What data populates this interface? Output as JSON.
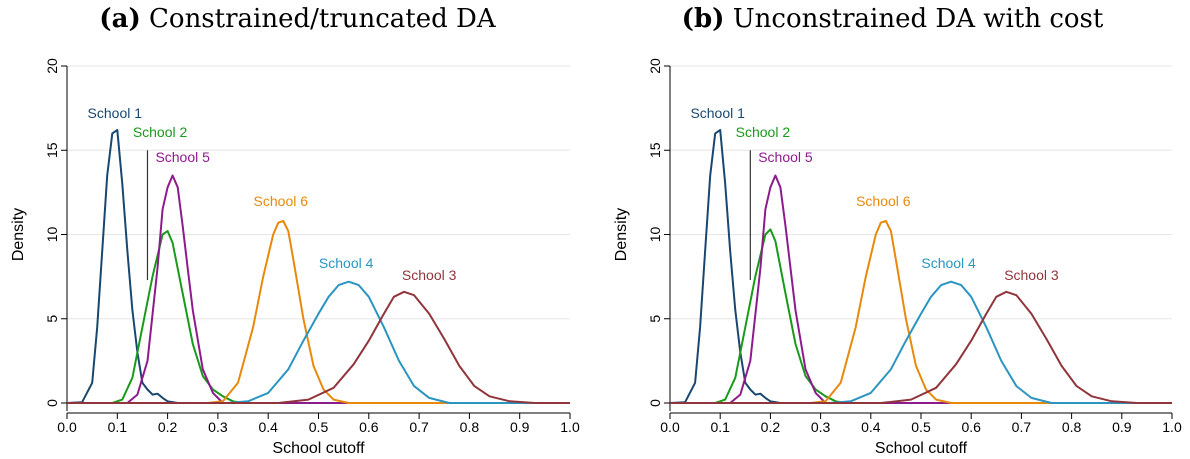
{
  "colors": {
    "school1": "#1a476f",
    "school2": "#1a9a1a",
    "school3": "#90353b",
    "school4": "#2a95c0",
    "school5": "#8c1b8c",
    "school6": "#e8890c",
    "grid": "#e6e6e6",
    "axis": "#000000"
  },
  "chart_data": [
    {
      "type": "line",
      "panel_letter": "(a)",
      "title": "Constrained/truncated DA",
      "xlabel": "School cutoff",
      "ylabel": "Density",
      "xlim": [
        0,
        1
      ],
      "ylim": [
        0,
        20
      ],
      "xticks": [
        "0.0",
        "0.1",
        "0.2",
        "0.3",
        "0.4",
        "0.5",
        "0.6",
        "0.7",
        "0.8",
        "0.9",
        "1.0"
      ],
      "yticks": [
        "0",
        "5",
        "10",
        "15",
        "20"
      ],
      "grid": true,
      "vertical_marker": {
        "x": 0.16,
        "y_from": 7.3,
        "y_to": 15.0
      },
      "series": [
        {
          "name": "School 1",
          "color_key": "school1",
          "label_at": [
            0.095,
            16.9
          ],
          "x": [
            0,
            0.03,
            0.05,
            0.06,
            0.07,
            0.08,
            0.09,
            0.1,
            0.11,
            0.12,
            0.13,
            0.14,
            0.15,
            0.16,
            0.17,
            0.18,
            0.19,
            0.2,
            0.22,
            1.0
          ],
          "y": [
            0,
            0.05,
            1.2,
            4.5,
            9.0,
            13.5,
            16.0,
            16.2,
            13.0,
            9.0,
            5.5,
            3.0,
            1.2,
            0.8,
            0.5,
            0.55,
            0.3,
            0.1,
            0,
            0
          ]
        },
        {
          "name": "School 2",
          "color_key": "school2",
          "label_at": [
            0.185,
            15.8
          ],
          "x": [
            0,
            0.09,
            0.11,
            0.13,
            0.15,
            0.17,
            0.19,
            0.2,
            0.21,
            0.23,
            0.25,
            0.27,
            0.29,
            0.31,
            0.33,
            0.35,
            1.0
          ],
          "y": [
            0,
            0,
            0.2,
            1.5,
            4.5,
            7.5,
            10.0,
            10.2,
            9.5,
            6.5,
            3.5,
            1.6,
            0.8,
            0.4,
            0.1,
            0,
            0
          ]
        },
        {
          "name": "School 5",
          "color_key": "school5",
          "label_at": [
            0.23,
            14.3
          ],
          "x": [
            0,
            0.12,
            0.14,
            0.16,
            0.18,
            0.19,
            0.2,
            0.21,
            0.22,
            0.23,
            0.24,
            0.25,
            0.27,
            0.29,
            0.31,
            1.0
          ],
          "y": [
            0,
            0,
            0.5,
            2.5,
            8.0,
            11.5,
            12.8,
            13.5,
            12.8,
            10.5,
            8.0,
            5.5,
            2.0,
            0.6,
            0,
            0
          ]
        },
        {
          "name": "School 6",
          "color_key": "school6",
          "label_at": [
            0.425,
            11.7
          ],
          "x": [
            0,
            0.28,
            0.31,
            0.34,
            0.37,
            0.39,
            0.41,
            0.42,
            0.43,
            0.44,
            0.45,
            0.47,
            0.49,
            0.51,
            0.53,
            0.56,
            1.0
          ],
          "y": [
            0,
            0,
            0.1,
            1.2,
            4.5,
            7.5,
            10.0,
            10.7,
            10.8,
            10.2,
            8.5,
            5.0,
            2.2,
            0.8,
            0.2,
            0,
            0
          ]
        },
        {
          "name": "School 4",
          "color_key": "school4",
          "label_at": [
            0.555,
            8.0
          ],
          "x": [
            0,
            0.32,
            0.36,
            0.4,
            0.44,
            0.47,
            0.5,
            0.52,
            0.54,
            0.56,
            0.58,
            0.6,
            0.63,
            0.66,
            0.69,
            0.72,
            0.76,
            1.0
          ],
          "y": [
            0,
            0,
            0.1,
            0.6,
            2.0,
            3.7,
            5.3,
            6.3,
            7.0,
            7.2,
            7.0,
            6.3,
            4.5,
            2.5,
            1.0,
            0.3,
            0,
            0
          ]
        },
        {
          "name": "School 3",
          "color_key": "school3",
          "label_at": [
            0.72,
            7.3
          ],
          "x": [
            0,
            0.42,
            0.48,
            0.53,
            0.57,
            0.6,
            0.63,
            0.65,
            0.67,
            0.69,
            0.72,
            0.75,
            0.78,
            0.81,
            0.84,
            0.88,
            0.93,
            1.0
          ],
          "y": [
            0,
            0,
            0.2,
            0.9,
            2.3,
            3.7,
            5.3,
            6.3,
            6.6,
            6.4,
            5.3,
            3.8,
            2.2,
            1.0,
            0.4,
            0.1,
            0,
            0
          ]
        }
      ]
    },
    {
      "type": "line",
      "panel_letter": "(b)",
      "title": "Unconstrained DA with cost",
      "xlabel": "School cutoff",
      "ylabel": "Density",
      "xlim": [
        0,
        1
      ],
      "ylim": [
        0,
        20
      ],
      "xticks": [
        "0.0",
        "0.1",
        "0.2",
        "0.3",
        "0.4",
        "0.5",
        "0.6",
        "0.7",
        "0.8",
        "0.9",
        "1.0"
      ],
      "yticks": [
        "0",
        "5",
        "10",
        "15",
        "20"
      ],
      "grid": true,
      "vertical_marker": {
        "x": 0.16,
        "y_from": 7.3,
        "y_to": 15.0
      },
      "series": [
        {
          "name": "School 1",
          "color_key": "school1",
          "label_at": [
            0.095,
            16.9
          ],
          "x": [
            0,
            0.03,
            0.05,
            0.06,
            0.07,
            0.08,
            0.09,
            0.1,
            0.11,
            0.12,
            0.13,
            0.14,
            0.15,
            0.16,
            0.17,
            0.18,
            0.19,
            0.2,
            0.22,
            1.0
          ],
          "y": [
            0,
            0.05,
            1.2,
            4.5,
            9.0,
            13.5,
            16.0,
            16.2,
            13.0,
            9.0,
            5.5,
            3.0,
            1.2,
            0.8,
            0.5,
            0.55,
            0.3,
            0.1,
            0,
            0
          ]
        },
        {
          "name": "School 2",
          "color_key": "school2",
          "label_at": [
            0.185,
            15.8
          ],
          "x": [
            0,
            0.09,
            0.11,
            0.13,
            0.15,
            0.17,
            0.19,
            0.2,
            0.21,
            0.23,
            0.25,
            0.27,
            0.29,
            0.31,
            0.33,
            0.35,
            1.0
          ],
          "y": [
            0,
            0,
            0.2,
            1.5,
            4.5,
            7.5,
            10.0,
            10.3,
            9.6,
            6.5,
            3.5,
            1.6,
            0.8,
            0.4,
            0.1,
            0,
            0
          ]
        },
        {
          "name": "School 5",
          "color_key": "school5",
          "label_at": [
            0.23,
            14.3
          ],
          "x": [
            0,
            0.12,
            0.14,
            0.16,
            0.18,
            0.19,
            0.2,
            0.21,
            0.22,
            0.23,
            0.24,
            0.25,
            0.27,
            0.29,
            0.31,
            1.0
          ],
          "y": [
            0,
            0,
            0.5,
            2.5,
            8.0,
            11.5,
            12.8,
            13.5,
            12.8,
            10.5,
            8.0,
            5.5,
            2.0,
            0.6,
            0,
            0
          ]
        },
        {
          "name": "School 6",
          "color_key": "school6",
          "label_at": [
            0.425,
            11.7
          ],
          "x": [
            0,
            0.28,
            0.31,
            0.34,
            0.37,
            0.39,
            0.41,
            0.42,
            0.43,
            0.44,
            0.45,
            0.47,
            0.49,
            0.51,
            0.53,
            0.56,
            1.0
          ],
          "y": [
            0,
            0,
            0.1,
            1.2,
            4.5,
            7.5,
            10.0,
            10.7,
            10.8,
            10.2,
            8.5,
            5.0,
            2.2,
            0.8,
            0.2,
            0,
            0
          ]
        },
        {
          "name": "School 4",
          "color_key": "school4",
          "label_at": [
            0.555,
            8.0
          ],
          "x": [
            0,
            0.32,
            0.36,
            0.4,
            0.44,
            0.47,
            0.5,
            0.52,
            0.54,
            0.56,
            0.58,
            0.6,
            0.63,
            0.66,
            0.69,
            0.72,
            0.76,
            1.0
          ],
          "y": [
            0,
            0,
            0.1,
            0.6,
            2.0,
            3.7,
            5.3,
            6.3,
            7.0,
            7.2,
            7.0,
            6.3,
            4.5,
            2.5,
            1.0,
            0.3,
            0,
            0
          ]
        },
        {
          "name": "School 3",
          "color_key": "school3",
          "label_at": [
            0.72,
            7.3
          ],
          "x": [
            0,
            0.42,
            0.48,
            0.53,
            0.57,
            0.6,
            0.63,
            0.65,
            0.67,
            0.69,
            0.72,
            0.75,
            0.78,
            0.81,
            0.84,
            0.88,
            0.93,
            1.0
          ],
          "y": [
            0,
            0,
            0.2,
            0.9,
            2.3,
            3.7,
            5.3,
            6.3,
            6.6,
            6.4,
            5.3,
            3.8,
            2.2,
            1.0,
            0.4,
            0.1,
            0,
            0
          ]
        }
      ]
    }
  ]
}
